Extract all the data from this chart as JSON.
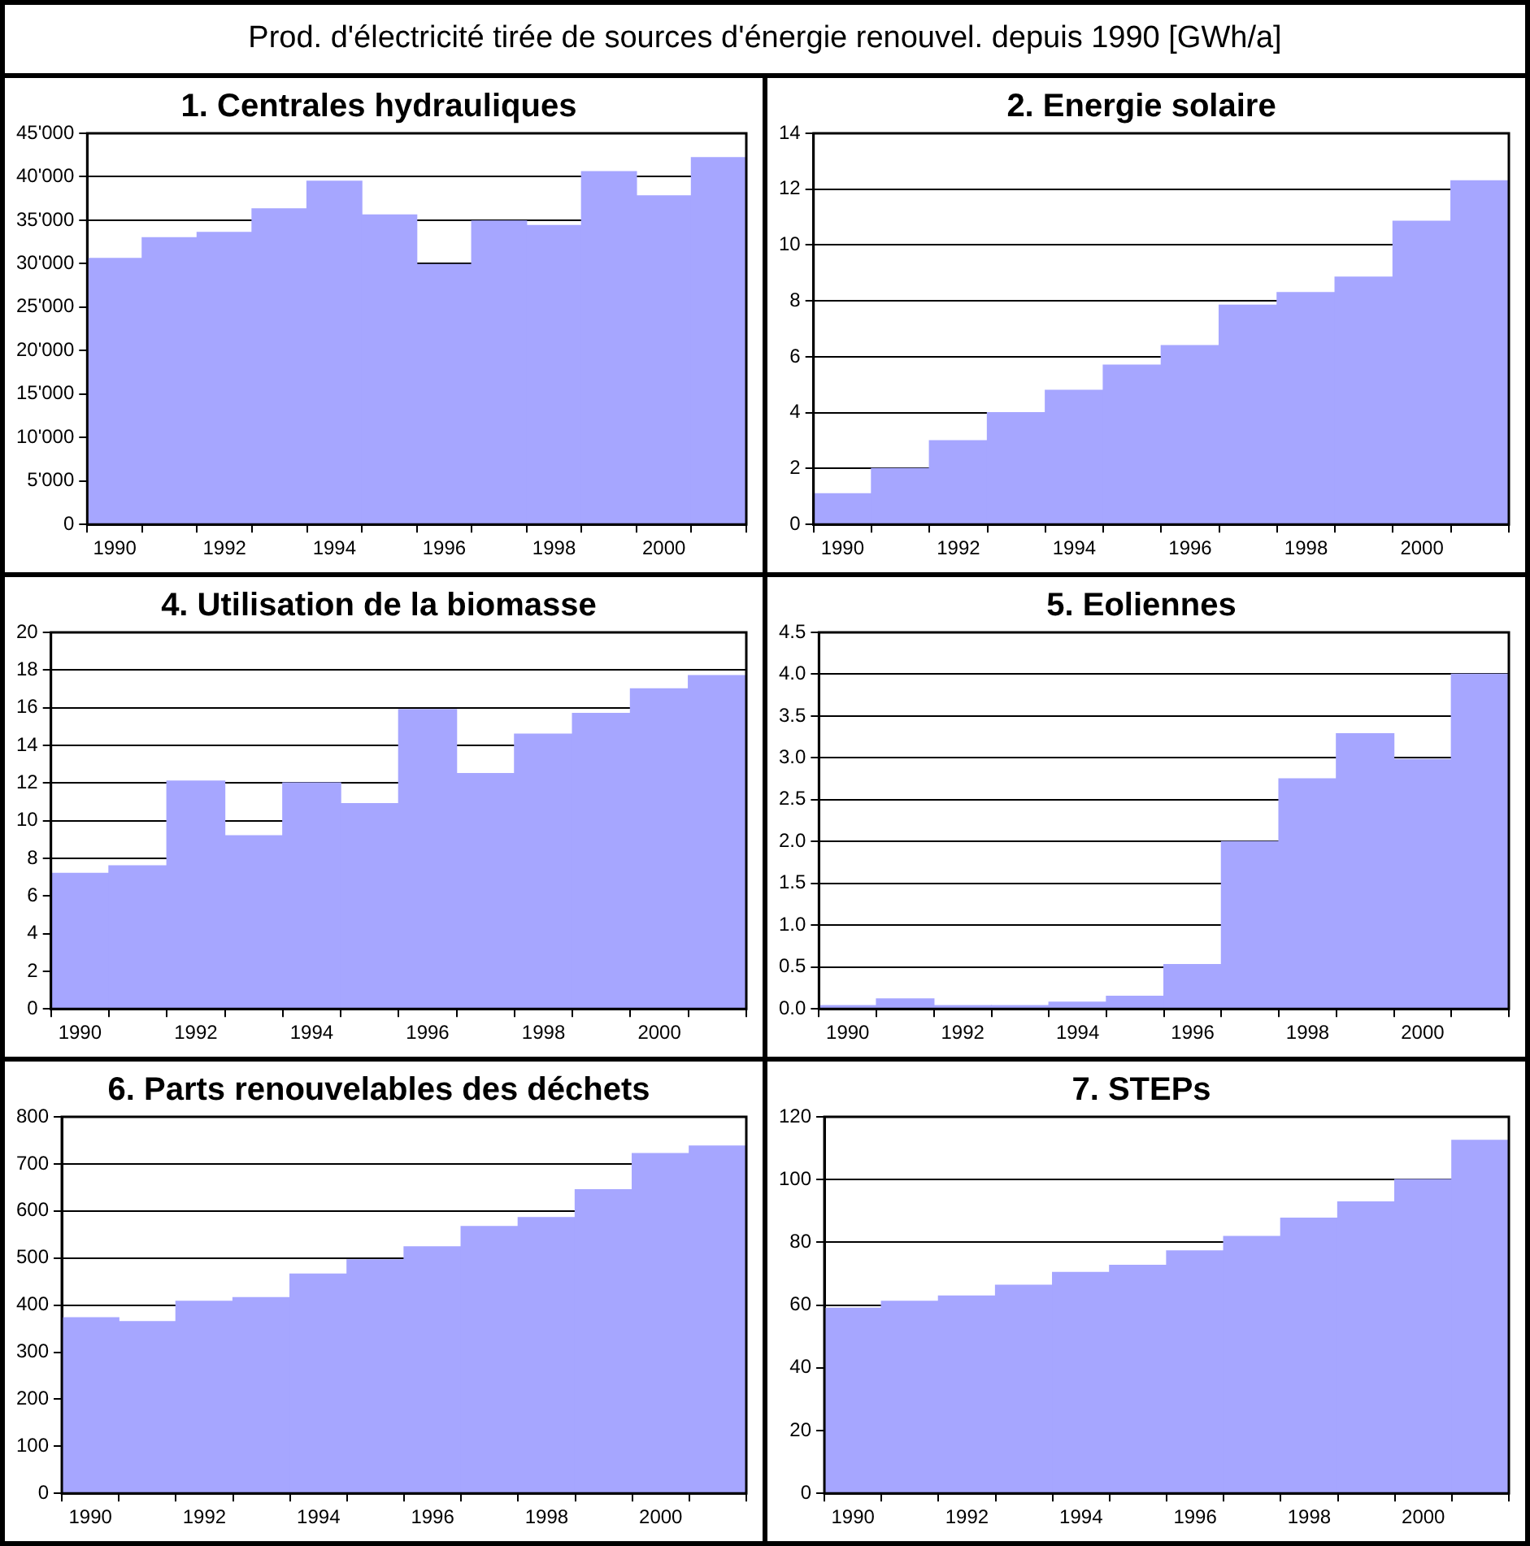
{
  "chart_data": [
    {
      "type": "other",
      "title": "Prod. d'électricité tirée de sources d'énergie renouvel. depuis 1990 [GWh/a]"
    },
    {
      "type": "bar",
      "title": "1. Centrales hydrauliques",
      "categories": [
        "1990",
        null,
        "1992",
        null,
        "1994",
        null,
        "1996",
        null,
        "1998",
        null,
        "2000",
        null
      ],
      "values": [
        30600,
        33000,
        33600,
        36300,
        39500,
        35600,
        29900,
        34900,
        34400,
        40600,
        37800,
        42200
      ],
      "color": "#a6a6ff",
      "ylim": [
        0,
        45000
      ],
      "yticks": [
        {
          "value": 0,
          "label": "0"
        },
        {
          "value": 5000,
          "label": "5'000"
        },
        {
          "value": 10000,
          "label": "10'000"
        },
        {
          "value": 15000,
          "label": "15'000"
        },
        {
          "value": 20000,
          "label": "20'000"
        },
        {
          "value": 25000,
          "label": "25'000"
        },
        {
          "value": 30000,
          "label": "30'000"
        },
        {
          "value": 35000,
          "label": "35'000"
        },
        {
          "value": 40000,
          "label": "40'000"
        },
        {
          "value": 45000,
          "label": "45'000"
        }
      ],
      "grid": "y"
    },
    {
      "type": "bar",
      "title": "2. Energie solaire",
      "categories": [
        "1990",
        null,
        "1992",
        null,
        "1994",
        null,
        "1996",
        null,
        "1998",
        null,
        "2000",
        null
      ],
      "values": [
        1.1,
        2.0,
        3.0,
        4.0,
        4.8,
        5.7,
        6.4,
        7.85,
        8.3,
        8.85,
        10.85,
        12.3
      ],
      "color": "#a6a6ff",
      "ylim": [
        0,
        14
      ],
      "yticks": [
        0,
        2,
        4,
        6,
        8,
        10,
        12,
        14
      ],
      "grid": "y"
    },
    {
      "type": "bar",
      "title": "4. Utilisation de la biomasse",
      "categories": [
        "1990",
        null,
        "1992",
        null,
        "1994",
        null,
        "1996",
        null,
        "1998",
        null,
        "2000",
        null
      ],
      "values": [
        7.2,
        7.6,
        12.1,
        9.2,
        12.0,
        10.9,
        15.9,
        12.5,
        14.6,
        15.7,
        17.0,
        17.7
      ],
      "color": "#a6a6ff",
      "ylim": [
        0,
        20
      ],
      "yticks": [
        0,
        2,
        4,
        6,
        8,
        10,
        12,
        14,
        16,
        18,
        20
      ],
      "grid": "y"
    },
    {
      "type": "bar",
      "title": "5. Eoliennes",
      "categories": [
        "1990",
        null,
        "1992",
        null,
        "1994",
        null,
        "1996",
        null,
        "1998",
        null,
        "2000",
        null
      ],
      "values": [
        0.04,
        0.12,
        0.04,
        0.04,
        0.08,
        0.15,
        0.53,
        2.0,
        2.75,
        3.29,
        2.98,
        4.0
      ],
      "color": "#a6a6ff",
      "ylim": [
        0,
        4.5
      ],
      "yticks": [
        {
          "value": 0,
          "label": "0.0"
        },
        {
          "value": 0.5,
          "label": "0.5"
        },
        {
          "value": 1,
          "label": "1.0"
        },
        {
          "value": 1.5,
          "label": "1.5"
        },
        {
          "value": 2,
          "label": "2.0"
        },
        {
          "value": 2.5,
          "label": "2.5"
        },
        {
          "value": 3,
          "label": "3.0"
        },
        {
          "value": 3.5,
          "label": "3.5"
        },
        {
          "value": 4,
          "label": "4.0"
        },
        {
          "value": 4.5,
          "label": "4.5"
        }
      ],
      "grid": "y"
    },
    {
      "type": "bar",
      "title": "6. Parts renouvelables des déchets",
      "categories": [
        "1990",
        null,
        "1992",
        null,
        "1994",
        null,
        "1996",
        null,
        "1998",
        null,
        "2000",
        null
      ],
      "values": [
        373,
        365,
        408,
        416,
        466,
        496,
        524,
        567,
        586,
        645,
        722,
        738
      ],
      "color": "#a6a6ff",
      "ylim": [
        0,
        800
      ],
      "yticks": [
        0,
        100,
        200,
        300,
        400,
        500,
        600,
        700,
        800
      ],
      "grid": "y"
    },
    {
      "type": "bar",
      "title": "7. STEPs",
      "categories": [
        "1990",
        null,
        "1992",
        null,
        "1994",
        null,
        "1996",
        null,
        "1998",
        null,
        "2000",
        null
      ],
      "values": [
        59,
        61.2,
        62.9,
        66.3,
        70.4,
        72.7,
        77.3,
        81.9,
        87.7,
        92.9,
        100,
        112.5
      ],
      "color": "#a6a6ff",
      "ylim": [
        0,
        120
      ],
      "yticks": [
        0,
        20,
        40,
        60,
        80,
        100,
        120
      ],
      "grid": "y"
    }
  ]
}
